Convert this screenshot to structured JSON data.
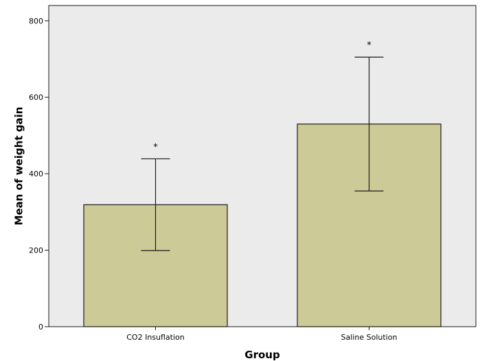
{
  "chart_data": {
    "type": "bar",
    "categories": [
      "CO2 Insuflation",
      "Saline Solution"
    ],
    "values": [
      319,
      530
    ],
    "error_bars": [
      {
        "low": 199,
        "high": 439
      },
      {
        "low": 355,
        "high": 705
      }
    ],
    "annotations": [
      "*",
      "*"
    ],
    "xlabel": "Group",
    "ylabel": "Mean of weight gain",
    "ylim": [
      0,
      840
    ],
    "yticks": [
      0,
      200,
      400,
      600,
      800
    ],
    "grid": false,
    "colors": {
      "plot_background": "#ebebeb",
      "bar_fill": "#ccca96",
      "bar_stroke": "#1a1a1a"
    }
  }
}
